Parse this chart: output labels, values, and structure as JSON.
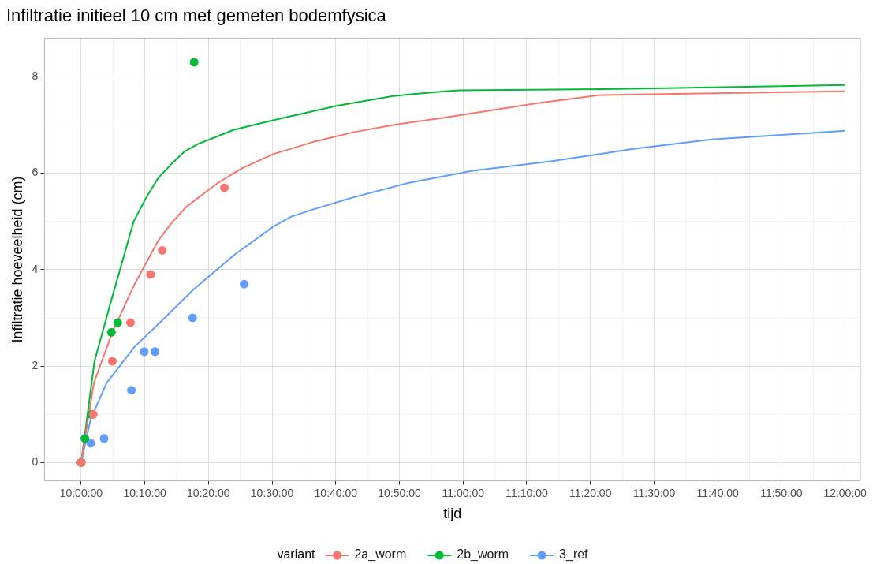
{
  "chart_data": {
    "type": "line",
    "title": "Infiltratie initieel 10 cm met gemeten bodemfysica",
    "xlabel": "tijd",
    "ylabel": "Infiltratie hoeveelheid (cm)",
    "legend_title": "variant",
    "legend": "bottom",
    "grid": true,
    "xlim": [
      9.904,
      12.04
    ],
    "ylim": [
      -0.38,
      8.8
    ],
    "yticks": [
      0,
      2,
      4,
      6,
      8
    ],
    "xticks": [
      {
        "value": 10,
        "label": "10:00:00"
      },
      {
        "value": 10.1667,
        "label": "10:10:00"
      },
      {
        "value": 10.3333,
        "label": "10:20:00"
      },
      {
        "value": 10.5,
        "label": "10:30:00"
      },
      {
        "value": 10.6667,
        "label": "10:40:00"
      },
      {
        "value": 10.8333,
        "label": "10:50:00"
      },
      {
        "value": 11,
        "label": "11:00:00"
      },
      {
        "value": 11.1667,
        "label": "11:10:00"
      },
      {
        "value": 11.3333,
        "label": "11:20:00"
      },
      {
        "value": 11.5,
        "label": "11:30:00"
      },
      {
        "value": 11.6667,
        "label": "11:40:00"
      },
      {
        "value": 11.8333,
        "label": "11:50:00"
      },
      {
        "value": 12,
        "label": "12:00:00"
      }
    ],
    "series": [
      {
        "name": "2a_worm",
        "marker": "none",
        "color": "#f8766d",
        "x": [
          10,
          10.0333,
          10.0817,
          10.14,
          10.2017,
          10.24,
          10.275,
          10.3083,
          10.3583,
          10.4208,
          10.5042,
          10.6083,
          10.7125,
          10.8167,
          10.95,
          11.1917,
          11.3583,
          12
        ],
        "values": [
          0,
          1.65,
          2.7,
          3.7,
          4.6,
          5.0,
          5.3,
          5.5,
          5.8,
          6.1,
          6.4,
          6.65,
          6.85,
          7.0,
          7.15,
          7.45,
          7.62,
          7.7
        ]
      },
      {
        "name": "2b_worm",
        "marker": "none",
        "color": "#00ba38",
        "x": [
          10,
          10.035,
          10.0767,
          10.1375,
          10.1708,
          10.2017,
          10.2375,
          10.2708,
          10.3042,
          10.4,
          10.5042,
          10.6708,
          10.8167,
          10.9517,
          10.99,
          11.4417,
          12
        ],
        "values": [
          0,
          2.1,
          3.3,
          5.0,
          5.5,
          5.9,
          6.2,
          6.45,
          6.6,
          6.9,
          7.1,
          7.4,
          7.6,
          7.7,
          7.72,
          7.75,
          7.83
        ]
      },
      {
        "name": "3_ref",
        "marker": "none",
        "color": "#619cff",
        "x": [
          10,
          10.025,
          10.0667,
          10.14,
          10.2125,
          10.2958,
          10.4,
          10.5042,
          10.55,
          10.6083,
          10.7125,
          10.8583,
          11.025,
          11.2333,
          11.4417,
          11.65,
          12
        ],
        "values": [
          0,
          0.9,
          1.65,
          2.4,
          2.95,
          3.6,
          4.3,
          4.9,
          5.1,
          5.25,
          5.5,
          5.8,
          6.05,
          6.25,
          6.5,
          6.7,
          6.88
        ]
      },
      {
        "type": "scatter",
        "marker": "circle",
        "color": "#f8766d",
        "x": [
          10,
          10.0317,
          10.0817,
          10.1292,
          10.1817,
          10.2125,
          10.375
        ],
        "values": [
          0,
          1.0,
          2.1,
          2.9,
          3.9,
          4.4,
          5.7
        ]
      },
      {
        "type": "scatter",
        "marker": "circle",
        "color": "#00ba38",
        "x": [
          10,
          10.01,
          10.0267,
          10.0792,
          10.0958,
          10.2958
        ],
        "values": [
          0,
          0.5,
          1.0,
          2.7,
          2.9,
          8.3
        ]
      },
      {
        "type": "scatter",
        "marker": "circle",
        "color": "#619cff",
        "x": [
          10,
          10.025,
          10.06,
          10.1317,
          10.165,
          10.1933,
          10.2917,
          10.4267
        ],
        "values": [
          0,
          0.4,
          0.5,
          1.5,
          2.3,
          2.3,
          3.0,
          3.7
        ]
      }
    ]
  }
}
